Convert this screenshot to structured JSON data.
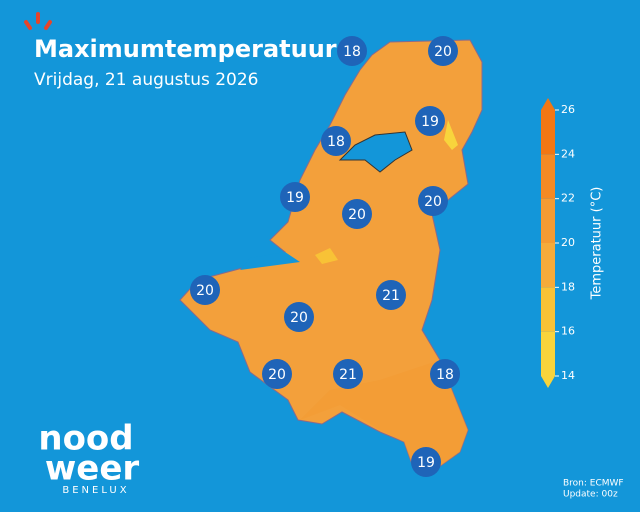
{
  "header": {
    "title": "Maximumtemperatuur",
    "subtitle": "Vrijdag, 21 augustus 2026"
  },
  "temperatures": [
    18,
    20,
    19,
    18,
    19,
    20,
    20,
    20,
    21,
    20,
    20,
    21,
    18,
    19
  ],
  "legend": {
    "label": "Temperatuur (°C)",
    "ticks": [
      14,
      16,
      18,
      20,
      22,
      24,
      26
    ],
    "colors": [
      "#f8d43c",
      "#f8c236",
      "#f5ab3a",
      "#f49b33",
      "#f48a24",
      "#f27714"
    ]
  },
  "logo": {
    "line1": "nood",
    "line2": "weer",
    "tagline": "BENELUX"
  },
  "footer": {
    "source": "Bron: ECMWF",
    "update": "Update: 00z"
  }
}
